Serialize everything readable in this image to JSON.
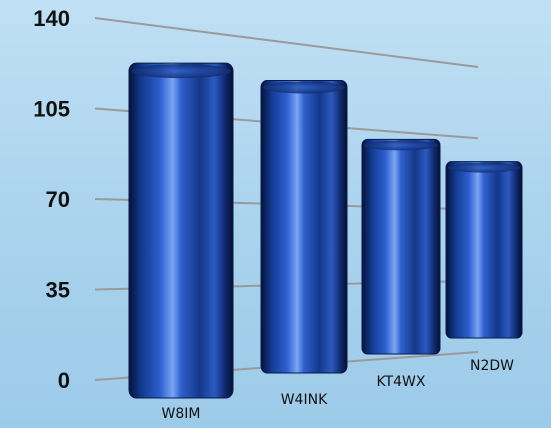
{
  "chart_data": {
    "type": "bar",
    "categories": [
      "W8IM",
      "W4INK",
      "KT4WX",
      "N2DW"
    ],
    "values": [
      136,
      128,
      100,
      87
    ],
    "ylim": [
      0,
      140
    ],
    "yticks": [
      0,
      35,
      70,
      105,
      140
    ],
    "grid": true,
    "bar_color": "#1f4fb0",
    "bar_highlight": "#6f9cf0",
    "bar_dark": "#0a1a4a",
    "grid_color": "#9a9a9a"
  }
}
